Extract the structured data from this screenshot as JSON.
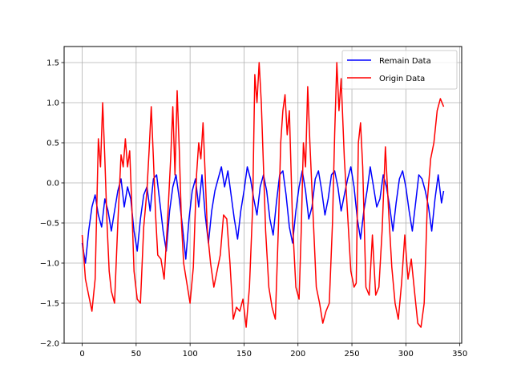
{
  "chart_data": {
    "type": "line",
    "title": "",
    "xlabel": "",
    "ylabel": "",
    "xlim": [
      -16.75,
      351.75
    ],
    "ylim": [
      -2.0,
      1.7
    ],
    "xticks": [
      0,
      50,
      100,
      150,
      200,
      250,
      300,
      350
    ],
    "yticks": [
      -2.0,
      -1.5,
      -1.0,
      -0.5,
      0.0,
      0.5,
      1.0,
      1.5
    ],
    "xtick_labels": [
      "0",
      "50",
      "100",
      "150",
      "200",
      "250",
      "300",
      "350"
    ],
    "ytick_labels": [
      "−2.0",
      "−1.5",
      "−1.0",
      "−0.5",
      "0.0",
      "0.5",
      "1.0",
      "1.5"
    ],
    "grid": true,
    "legend_position": "top-right",
    "series": [
      {
        "name": "Remain Data",
        "color": "#0000ff",
        "x": [
          0,
          3,
          6,
          9,
          12,
          15,
          18,
          21,
          24,
          27,
          30,
          33,
          36,
          39,
          42,
          45,
          48,
          51,
          54,
          57,
          60,
          63,
          66,
          69,
          72,
          75,
          78,
          81,
          84,
          87,
          90,
          93,
          96,
          99,
          102,
          105,
          108,
          111,
          114,
          117,
          120,
          123,
          126,
          129,
          132,
          135,
          138,
          141,
          144,
          147,
          150,
          153,
          156,
          159,
          162,
          165,
          168,
          171,
          174,
          177,
          180,
          183,
          186,
          189,
          192,
          195,
          198,
          201,
          204,
          207,
          210,
          213,
          216,
          219,
          222,
          225,
          228,
          231,
          234,
          237,
          240,
          243,
          246,
          249,
          252,
          255,
          258,
          261,
          264,
          267,
          270,
          273,
          276,
          279,
          282,
          285,
          288,
          291,
          294,
          297,
          300,
          303,
          306,
          309,
          312,
          315,
          318,
          321,
          324,
          327,
          330,
          333,
          335
        ],
        "y": [
          -0.75,
          -1.0,
          -0.6,
          -0.3,
          -0.15,
          -0.4,
          -0.55,
          -0.2,
          -0.35,
          -0.6,
          -0.35,
          -0.1,
          0.05,
          -0.3,
          -0.05,
          -0.2,
          -0.6,
          -0.85,
          -0.45,
          -0.15,
          -0.05,
          -0.35,
          0.05,
          0.1,
          -0.25,
          -0.6,
          -0.85,
          -0.35,
          -0.05,
          0.1,
          -0.2,
          -0.55,
          -0.95,
          -0.45,
          -0.1,
          0.05,
          -0.3,
          0.1,
          -0.4,
          -0.75,
          -0.35,
          -0.1,
          0.05,
          0.2,
          -0.05,
          0.15,
          -0.15,
          -0.45,
          -0.7,
          -0.35,
          -0.1,
          0.2,
          0.05,
          -0.2,
          -0.4,
          -0.05,
          0.1,
          -0.1,
          -0.45,
          -0.65,
          -0.25,
          0.1,
          0.15,
          -0.15,
          -0.55,
          -0.75,
          -0.35,
          -0.05,
          0.15,
          -0.1,
          -0.45,
          -0.3,
          0.05,
          0.15,
          -0.1,
          -0.4,
          -0.2,
          0.1,
          0.15,
          -0.05,
          -0.35,
          -0.15,
          0.05,
          0.2,
          -0.05,
          -0.45,
          -0.7,
          -0.35,
          -0.1,
          0.2,
          -0.05,
          -0.3,
          -0.2,
          0.1,
          -0.05,
          -0.3,
          -0.6,
          -0.25,
          0.05,
          0.15,
          -0.05,
          -0.35,
          -0.6,
          -0.25,
          0.1,
          0.05,
          -0.1,
          -0.3,
          -0.6,
          -0.2,
          0.1,
          -0.25,
          -0.1
        ]
      },
      {
        "name": "Origin Data",
        "color": "#ff0000",
        "x": [
          0,
          3,
          6,
          9,
          12,
          15,
          17,
          19,
          21,
          23,
          25,
          27,
          30,
          33,
          36,
          38,
          40,
          42,
          44,
          46,
          48,
          51,
          54,
          57,
          60,
          62,
          64,
          66,
          68,
          70,
          73,
          76,
          79,
          82,
          84,
          86,
          88,
          90,
          92,
          94,
          97,
          100,
          103,
          106,
          108,
          110,
          112,
          114,
          116,
          119,
          122,
          125,
          128,
          131,
          134,
          137,
          140,
          143,
          146,
          149,
          152,
          155,
          158,
          160,
          162,
          164,
          166,
          168,
          170,
          173,
          176,
          179,
          182,
          184,
          186,
          188,
          190,
          192,
          195,
          198,
          201,
          203,
          205,
          207,
          209,
          211,
          214,
          217,
          220,
          223,
          226,
          229,
          232,
          234,
          236,
          238,
          240,
          243,
          246,
          249,
          252,
          254,
          256,
          258,
          260,
          263,
          266,
          269,
          272,
          275,
          278,
          281,
          284,
          287,
          290,
          293,
          296,
          299,
          302,
          305,
          308,
          311,
          314,
          317,
          320,
          323,
          326,
          329,
          332,
          335
        ],
        "y": [
          -0.65,
          -1.2,
          -1.4,
          -1.6,
          -1.2,
          0.55,
          0.2,
          1.0,
          0.3,
          -0.5,
          -1.1,
          -1.35,
          -1.5,
          -0.5,
          0.35,
          0.2,
          0.55,
          0.2,
          0.4,
          -0.3,
          -1.1,
          -1.45,
          -1.5,
          -0.55,
          -0.1,
          0.4,
          0.95,
          0.3,
          -0.4,
          -0.9,
          -0.95,
          -1.2,
          -0.5,
          0.3,
          0.95,
          0.1,
          1.15,
          0.4,
          -0.5,
          -1.0,
          -1.25,
          -1.5,
          -1.05,
          0.1,
          0.5,
          0.3,
          0.75,
          0.1,
          -0.6,
          -1.0,
          -1.3,
          -1.1,
          -0.9,
          -0.4,
          -0.45,
          -1.0,
          -1.7,
          -1.55,
          -1.6,
          -1.45,
          -1.8,
          -1.3,
          -0.3,
          1.35,
          1.0,
          1.5,
          1.0,
          0.2,
          -0.6,
          -1.3,
          -1.55,
          -1.7,
          -0.5,
          0.5,
          0.9,
          1.1,
          0.6,
          0.9,
          -0.5,
          -1.3,
          -1.45,
          -0.6,
          0.5,
          0.2,
          1.2,
          0.5,
          -0.4,
          -1.3,
          -1.5,
          -1.75,
          -1.6,
          -1.5,
          -0.5,
          0.6,
          1.5,
          0.9,
          1.3,
          0.3,
          -0.4,
          -1.1,
          -1.3,
          -1.25,
          0.5,
          0.75,
          0.2,
          -1.3,
          -1.4,
          -0.65,
          -1.4,
          -1.3,
          -0.6,
          0.45,
          -0.35,
          -1.05,
          -1.5,
          -1.7,
          -1.25,
          -0.65,
          -1.2,
          -0.95,
          -1.35,
          -1.75,
          -1.8,
          -1.5,
          -0.2,
          0.3,
          0.5,
          0.9,
          1.05,
          0.95
        ]
      }
    ]
  }
}
